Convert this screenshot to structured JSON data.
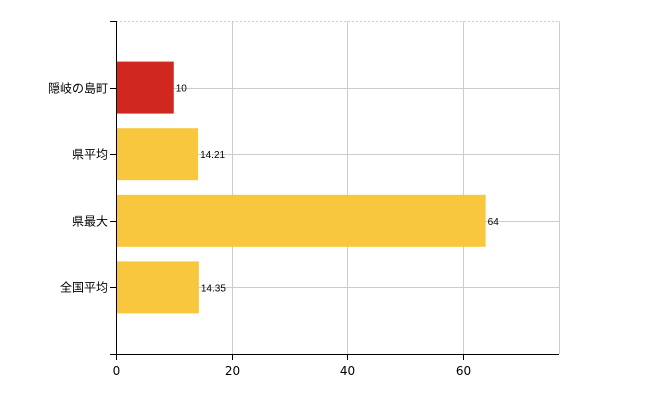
{
  "chart_data": {
    "type": "bar",
    "orientation": "horizontal",
    "categories": [
      "隠岐の島町",
      "県平均",
      "県最大",
      "全国平均"
    ],
    "values": [
      10,
      14.21,
      64,
      14.35
    ],
    "data_labels": [
      "10",
      "14.21",
      "64",
      "14.35"
    ],
    "bar_colors": [
      "#d0281e",
      "#f8c73e",
      "#f8c73e",
      "#f8c73e"
    ],
    "xlim": [
      0,
      76.7
    ],
    "xticks": [
      0,
      20,
      40,
      60
    ],
    "xtick_labels": [
      "0",
      "20",
      "40",
      "60"
    ],
    "grid": true,
    "title": "",
    "xlabel": "",
    "ylabel": ""
  }
}
